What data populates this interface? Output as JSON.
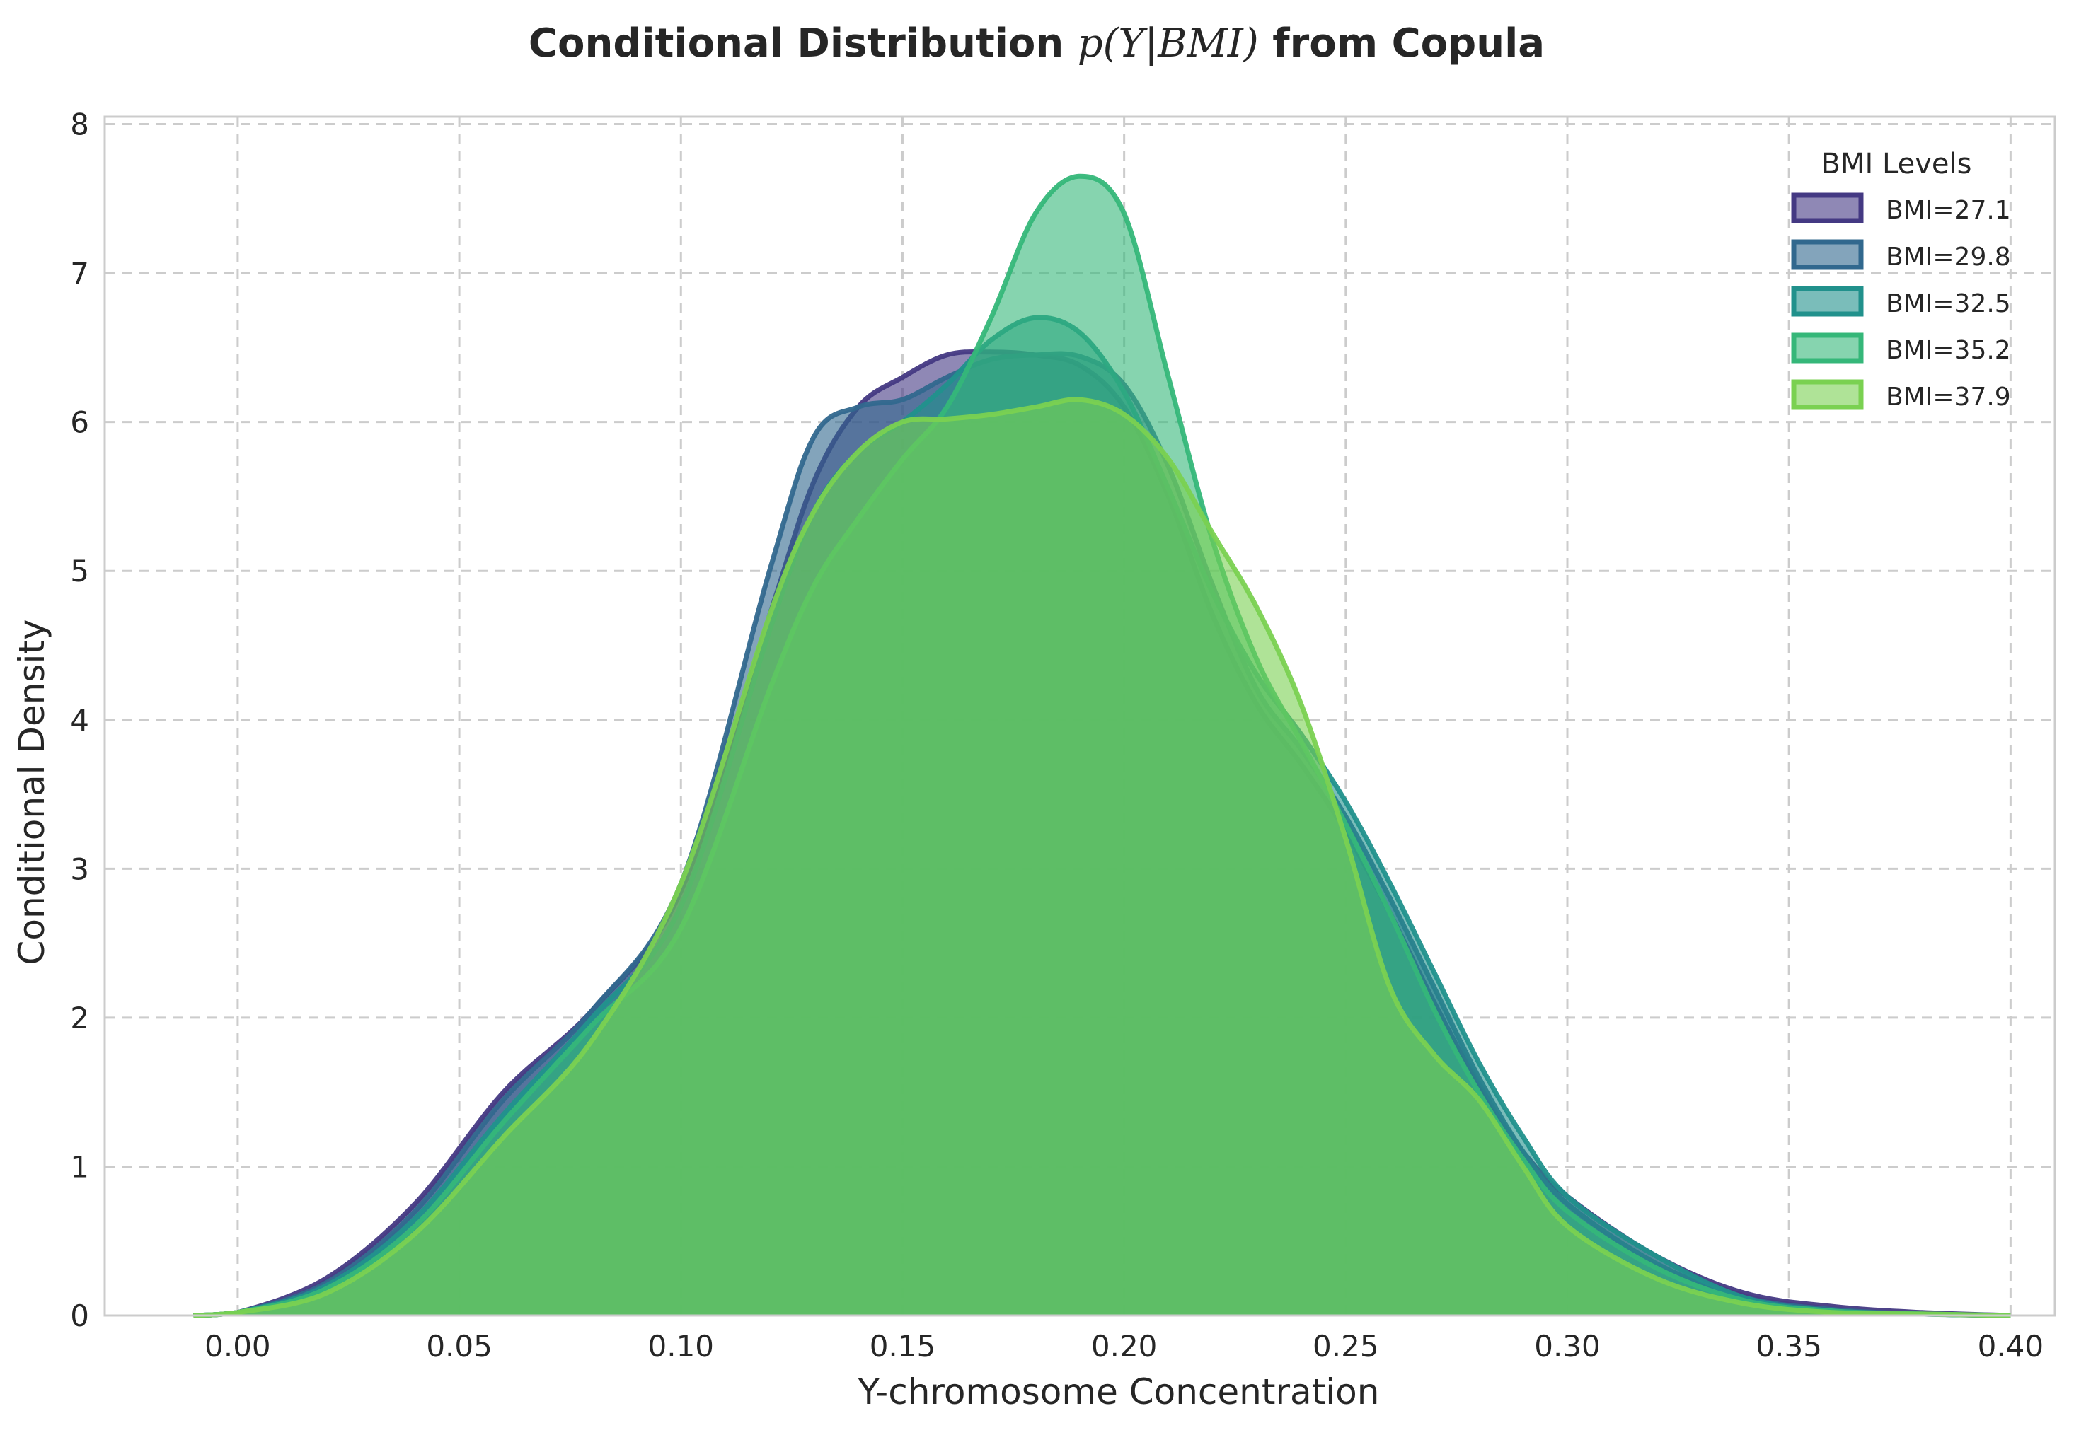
{
  "chart_data": {
    "type": "area",
    "title_prefix": "Conditional Distribution ",
    "title_math": "p(Y|BMI)",
    "title_suffix": " from Copula",
    "xlabel": "Y-chromosome Concentration",
    "ylabel": "Conditional Density",
    "xlim": [
      -0.03,
      0.41
    ],
    "ylim": [
      0,
      8.05
    ],
    "xticks": [
      0.0,
      0.05,
      0.1,
      0.15,
      0.2,
      0.25,
      0.3,
      0.35,
      0.4
    ],
    "xtick_labels": [
      "0.00",
      "0.05",
      "0.10",
      "0.15",
      "0.20",
      "0.25",
      "0.30",
      "0.35",
      "0.40"
    ],
    "yticks": [
      0,
      1,
      2,
      3,
      4,
      5,
      6,
      7,
      8
    ],
    "ytick_labels": [
      "0",
      "1",
      "2",
      "3",
      "4",
      "5",
      "6",
      "7",
      "8"
    ],
    "grid": true,
    "legend_title": "BMI Levels",
    "legend_position": "top-right",
    "series": [
      {
        "name": "BMI=27.1",
        "color": "#443983",
        "x": [
          -0.01,
          0.0,
          0.02,
          0.04,
          0.06,
          0.08,
          0.1,
          0.12,
          0.13,
          0.14,
          0.15,
          0.16,
          0.17,
          0.18,
          0.19,
          0.2,
          0.21,
          0.22,
          0.23,
          0.24,
          0.25,
          0.26,
          0.27,
          0.28,
          0.29,
          0.3,
          0.32,
          0.34,
          0.36,
          0.38,
          0.4
        ],
        "y": [
          0.0,
          0.02,
          0.25,
          0.75,
          1.5,
          2.05,
          2.85,
          4.7,
          5.6,
          6.1,
          6.3,
          6.45,
          6.47,
          6.45,
          6.38,
          6.1,
          5.5,
          4.7,
          4.1,
          3.7,
          3.25,
          2.7,
          2.1,
          1.55,
          1.1,
          0.8,
          0.4,
          0.15,
          0.06,
          0.02,
          0.0
        ]
      },
      {
        "name": "BMI=29.8",
        "color": "#31688e",
        "x": [
          -0.01,
          0.0,
          0.02,
          0.04,
          0.06,
          0.08,
          0.1,
          0.12,
          0.13,
          0.14,
          0.15,
          0.16,
          0.17,
          0.18,
          0.19,
          0.2,
          0.21,
          0.22,
          0.23,
          0.24,
          0.25,
          0.26,
          0.27,
          0.28,
          0.29,
          0.3,
          0.32,
          0.34,
          0.36,
          0.38,
          0.4
        ],
        "y": [
          0.0,
          0.02,
          0.22,
          0.7,
          1.45,
          2.05,
          2.9,
          5.0,
          5.9,
          6.1,
          6.15,
          6.3,
          6.42,
          6.45,
          6.44,
          6.25,
          5.7,
          4.9,
          4.2,
          3.8,
          3.35,
          2.8,
          2.2,
          1.6,
          1.1,
          0.75,
          0.35,
          0.12,
          0.04,
          0.01,
          0.0
        ]
      },
      {
        "name": "BMI=32.5",
        "color": "#21918c",
        "x": [
          -0.01,
          0.0,
          0.02,
          0.04,
          0.06,
          0.08,
          0.1,
          0.12,
          0.13,
          0.14,
          0.15,
          0.16,
          0.17,
          0.18,
          0.19,
          0.2,
          0.21,
          0.22,
          0.23,
          0.24,
          0.25,
          0.26,
          0.27,
          0.28,
          0.29,
          0.3,
          0.32,
          0.34,
          0.36,
          0.38,
          0.4
        ],
        "y": [
          0.0,
          0.02,
          0.2,
          0.65,
          1.35,
          2.0,
          2.75,
          4.6,
          5.4,
          5.8,
          6.0,
          6.25,
          6.55,
          6.7,
          6.6,
          6.2,
          5.55,
          4.85,
          4.3,
          3.9,
          3.45,
          2.9,
          2.3,
          1.7,
          1.2,
          0.8,
          0.4,
          0.12,
          0.03,
          0.01,
          0.0
        ]
      },
      {
        "name": "BMI=35.2",
        "color": "#35b779",
        "x": [
          -0.01,
          0.0,
          0.02,
          0.04,
          0.06,
          0.08,
          0.1,
          0.12,
          0.13,
          0.14,
          0.15,
          0.16,
          0.17,
          0.18,
          0.19,
          0.2,
          0.21,
          0.22,
          0.23,
          0.24,
          0.25,
          0.26,
          0.27,
          0.28,
          0.29,
          0.3,
          0.32,
          0.34,
          0.36,
          0.38,
          0.4
        ],
        "y": [
          0.0,
          0.02,
          0.18,
          0.6,
          1.3,
          1.95,
          2.6,
          4.2,
          4.9,
          5.35,
          5.75,
          6.1,
          6.7,
          7.4,
          7.65,
          7.4,
          6.3,
          5.2,
          4.4,
          3.85,
          3.3,
          2.7,
          2.05,
          1.5,
          1.05,
          0.7,
          0.32,
          0.1,
          0.03,
          0.01,
          0.0
        ]
      },
      {
        "name": "BMI=37.9",
        "color": "#7ad151",
        "x": [
          -0.01,
          0.0,
          0.02,
          0.04,
          0.06,
          0.08,
          0.1,
          0.12,
          0.13,
          0.14,
          0.15,
          0.16,
          0.17,
          0.18,
          0.19,
          0.2,
          0.21,
          0.22,
          0.23,
          0.24,
          0.25,
          0.26,
          0.27,
          0.28,
          0.29,
          0.3,
          0.32,
          0.34,
          0.36,
          0.38,
          0.4
        ],
        "y": [
          0.0,
          0.02,
          0.15,
          0.55,
          1.2,
          1.85,
          2.9,
          4.7,
          5.4,
          5.8,
          6.0,
          6.02,
          6.05,
          6.1,
          6.15,
          6.05,
          5.75,
          5.25,
          4.75,
          4.1,
          3.2,
          2.2,
          1.75,
          1.45,
          1.0,
          0.6,
          0.25,
          0.08,
          0.02,
          0.01,
          0.0
        ]
      }
    ]
  }
}
